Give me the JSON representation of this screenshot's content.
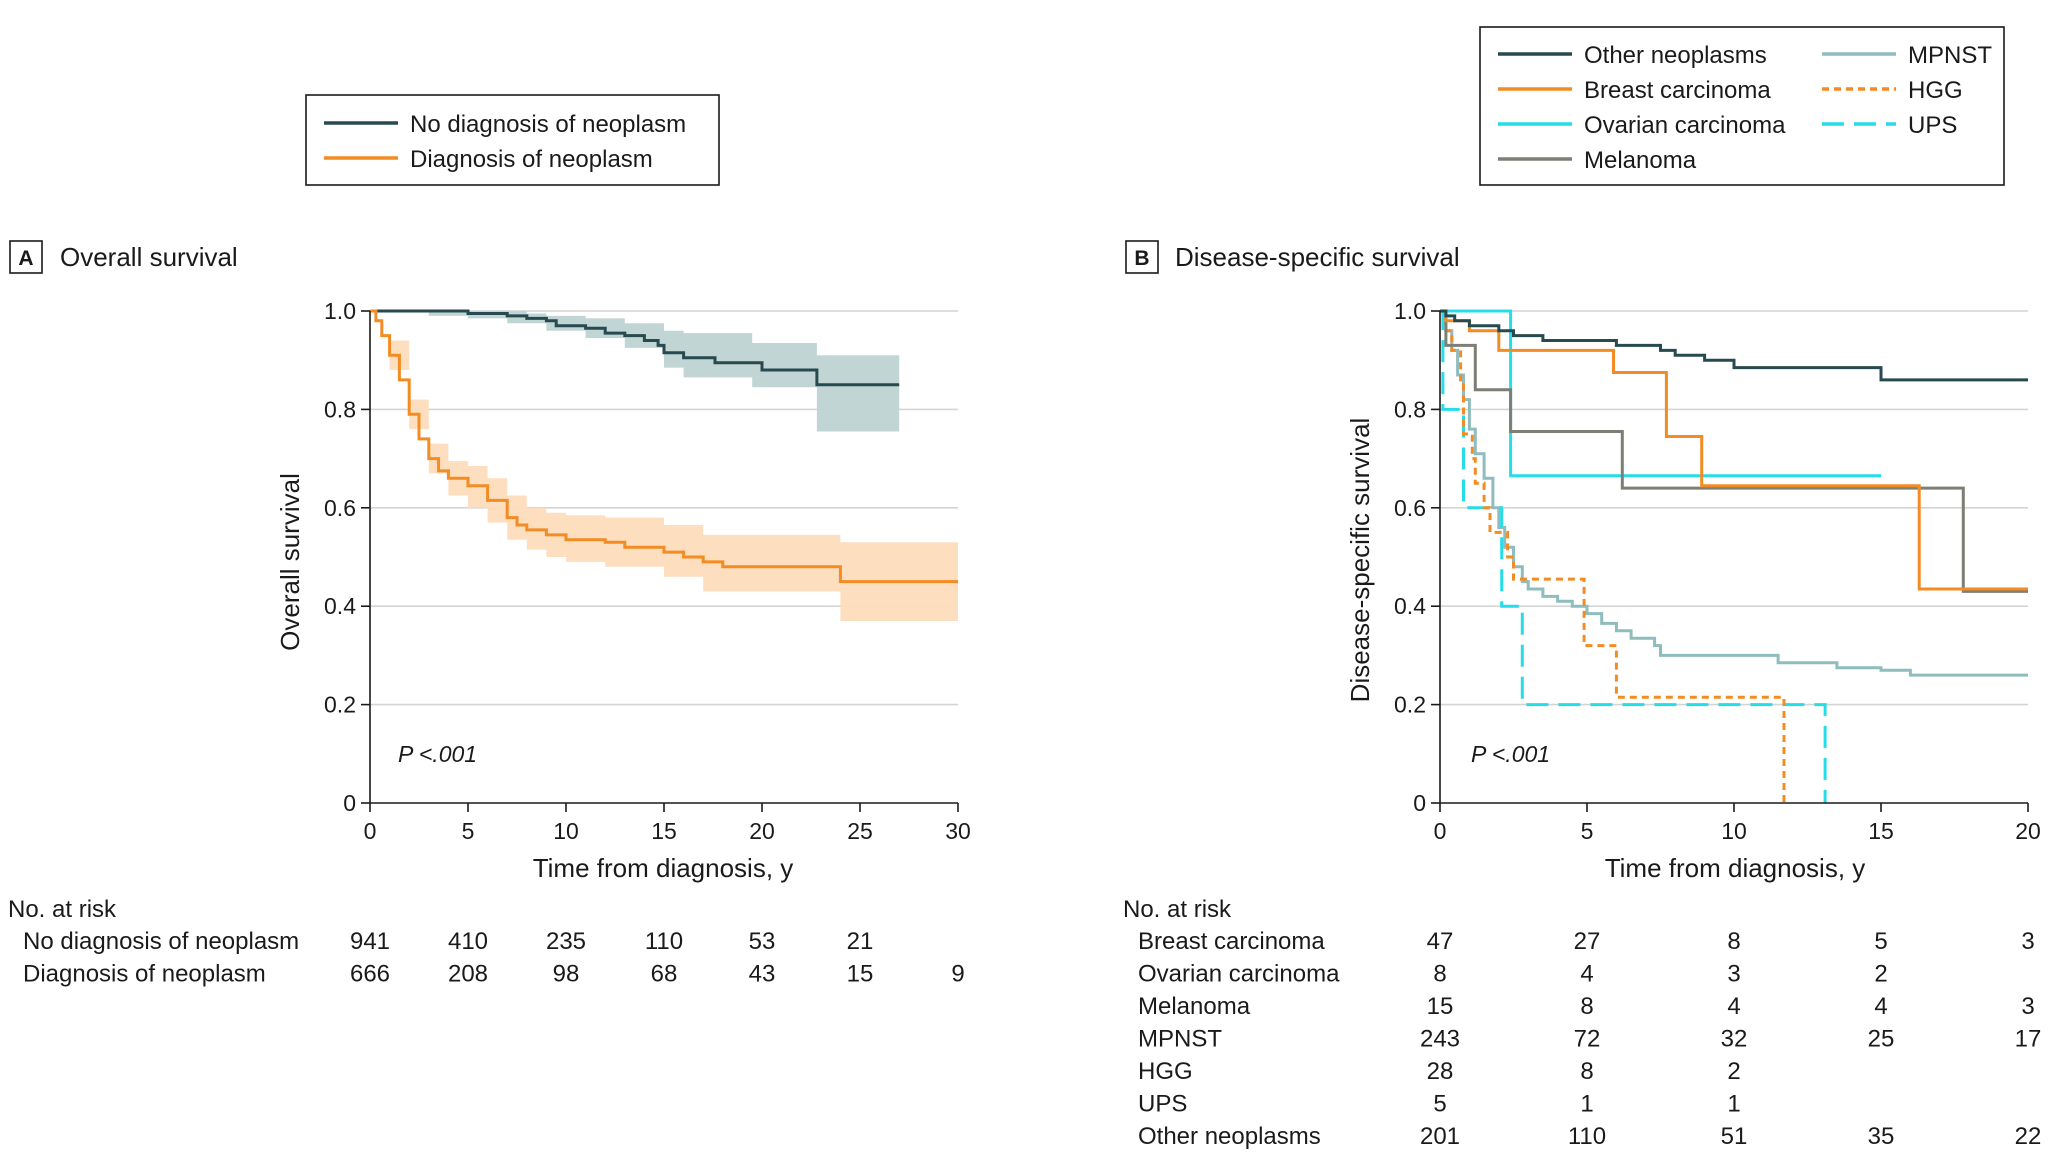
{
  "colors": {
    "no_neoplasm": "#264a4f",
    "neoplasm": "#f28c23",
    "other_neoplasms": "#264a4f",
    "breast": "#f28c23",
    "ovarian": "#27dce9",
    "melanoma": "#7d7f75",
    "mpnst": "#8fbcbd",
    "hgg": "#f28c23",
    "ups": "#27dce9",
    "ci_no_neoplasm": "#bfd3d3",
    "ci_neoplasm": "#fddcbc",
    "grid": "#d4d4d4"
  },
  "panel_a": {
    "letter": "A",
    "title": "Overall survival",
    "legend": [
      "No diagnosis of neoplasm",
      "Diagnosis of neoplasm"
    ],
    "pvalue": "P <.001",
    "risk": {
      "header": "No. at risk",
      "rows": [
        {
          "label": "No diagnosis of neoplasm",
          "values": [
            "941",
            "410",
            "235",
            "110",
            "53",
            "21",
            ""
          ]
        },
        {
          "label": "Diagnosis of neoplasm",
          "values": [
            "666",
            "208",
            "98",
            "68",
            "43",
            "15",
            "9"
          ]
        }
      ]
    }
  },
  "panel_b": {
    "letter": "B",
    "title": "Disease-specific survival",
    "legend": [
      "Other neoplasms",
      "Breast carcinoma",
      "Ovarian carcinoma",
      "Melanoma",
      "MPNST",
      "HGG",
      "UPS"
    ],
    "pvalue": "P <.001",
    "risk": {
      "header": "No. at risk",
      "rows": [
        {
          "label": "Breast carcinoma",
          "values": [
            "47",
            "27",
            "8",
            "5",
            "3"
          ]
        },
        {
          "label": "Ovarian carcinoma",
          "values": [
            "8",
            "4",
            "3",
            "2",
            ""
          ]
        },
        {
          "label": "Melanoma",
          "values": [
            "15",
            "8",
            "4",
            "4",
            "3"
          ]
        },
        {
          "label": "MPNST",
          "values": [
            "243",
            "72",
            "32",
            "25",
            "17"
          ]
        },
        {
          "label": "HGG",
          "values": [
            "28",
            "8",
            "2",
            "",
            ""
          ]
        },
        {
          "label": "UPS",
          "values": [
            "5",
            "1",
            "1",
            "",
            ""
          ]
        },
        {
          "label": "Other neoplasms",
          "values": [
            "201",
            "110",
            "51",
            "35",
            "22"
          ]
        }
      ]
    }
  },
  "chart_data": [
    {
      "type": "line",
      "subtype": "kaplan-meier step",
      "title": "Overall survival",
      "xlabel": "Time from diagnosis, y",
      "ylabel": "Overall survival",
      "xlim": [
        0,
        30
      ],
      "ylim": [
        0,
        1
      ],
      "xticks": [
        0,
        5,
        10,
        15,
        20,
        25,
        30
      ],
      "yticks": [
        0,
        0.2,
        0.4,
        0.6,
        0.8,
        1.0
      ],
      "ytick_labels": [
        "0",
        "0.2",
        "0.4",
        "0.6",
        "0.8",
        "1.0"
      ],
      "grid": "horizontal",
      "series": [
        {
          "name": "No diagnosis of neoplasm",
          "step": true,
          "points": [
            [
              0,
              1.0
            ],
            [
              2.5,
              1.0
            ],
            [
              5,
              0.995
            ],
            [
              7,
              0.99
            ],
            [
              8,
              0.985
            ],
            [
              9,
              0.98
            ],
            [
              9.5,
              0.97
            ],
            [
              11,
              0.965
            ],
            [
              12,
              0.955
            ],
            [
              13,
              0.95
            ],
            [
              14,
              0.94
            ],
            [
              14.7,
              0.93
            ],
            [
              15,
              0.915
            ],
            [
              16,
              0.905
            ],
            [
              17.6,
              0.895
            ],
            [
              20,
              0.88
            ],
            [
              22.8,
              0.85
            ],
            [
              27,
              0.85
            ]
          ],
          "ci_lower": [
            [
              0,
              1.0
            ],
            [
              3,
              0.99
            ],
            [
              5,
              0.985
            ],
            [
              7,
              0.975
            ],
            [
              9,
              0.96
            ],
            [
              11,
              0.945
            ],
            [
              13,
              0.925
            ],
            [
              15,
              0.885
            ],
            [
              16,
              0.865
            ],
            [
              19.5,
              0.845
            ],
            [
              22.8,
              0.755
            ],
            [
              27,
              0.755
            ]
          ],
          "ci_upper": [
            [
              0,
              1.0
            ],
            [
              5,
              1.0
            ],
            [
              8,
              0.995
            ],
            [
              9,
              0.99
            ],
            [
              11,
              0.985
            ],
            [
              13,
              0.975
            ],
            [
              15,
              0.96
            ],
            [
              16,
              0.955
            ],
            [
              19.5,
              0.935
            ],
            [
              22.8,
              0.91
            ],
            [
              27,
              0.91
            ]
          ]
        },
        {
          "name": "Diagnosis of neoplasm",
          "step": true,
          "points": [
            [
              0,
              1.0
            ],
            [
              0.3,
              0.98
            ],
            [
              0.6,
              0.95
            ],
            [
              1,
              0.91
            ],
            [
              1.5,
              0.86
            ],
            [
              2,
              0.79
            ],
            [
              2.5,
              0.74
            ],
            [
              3,
              0.7
            ],
            [
              3.5,
              0.675
            ],
            [
              4,
              0.66
            ],
            [
              5,
              0.645
            ],
            [
              6,
              0.615
            ],
            [
              7,
              0.58
            ],
            [
              7.5,
              0.565
            ],
            [
              8,
              0.555
            ],
            [
              9,
              0.545
            ],
            [
              10,
              0.535
            ],
            [
              12,
              0.53
            ],
            [
              13,
              0.52
            ],
            [
              15,
              0.51
            ],
            [
              16,
              0.5
            ],
            [
              17,
              0.49
            ],
            [
              18,
              0.48
            ],
            [
              20,
              0.48
            ],
            [
              24,
              0.45
            ],
            [
              30,
              0.45
            ]
          ],
          "ci_lower": [
            [
              0,
              1.0
            ],
            [
              1,
              0.88
            ],
            [
              2,
              0.76
            ],
            [
              3,
              0.67
            ],
            [
              4,
              0.625
            ],
            [
              5,
              0.6
            ],
            [
              6,
              0.57
            ],
            [
              7,
              0.535
            ],
            [
              8,
              0.515
            ],
            [
              9,
              0.5
            ],
            [
              10,
              0.49
            ],
            [
              12,
              0.48
            ],
            [
              15,
              0.46
            ],
            [
              17,
              0.43
            ],
            [
              20,
              0.43
            ],
            [
              24,
              0.37
            ],
            [
              30,
              0.37
            ]
          ],
          "ci_upper": [
            [
              0,
              1.0
            ],
            [
              1,
              0.94
            ],
            [
              2,
              0.82
            ],
            [
              3,
              0.73
            ],
            [
              4,
              0.695
            ],
            [
              5,
              0.685
            ],
            [
              6,
              0.66
            ],
            [
              7,
              0.625
            ],
            [
              8,
              0.6
            ],
            [
              9,
              0.59
            ],
            [
              10,
              0.585
            ],
            [
              12,
              0.58
            ],
            [
              15,
              0.565
            ],
            [
              17,
              0.545
            ],
            [
              20,
              0.545
            ],
            [
              24,
              0.53
            ],
            [
              30,
              0.53
            ]
          ]
        }
      ]
    },
    {
      "type": "line",
      "subtype": "kaplan-meier step",
      "title": "Disease-specific survival",
      "xlabel": "Time from diagnosis, y",
      "ylabel": "Disease-specific survival",
      "xlim": [
        0,
        20
      ],
      "ylim": [
        0,
        1
      ],
      "xticks": [
        0,
        5,
        10,
        15,
        20
      ],
      "yticks": [
        0,
        0.2,
        0.4,
        0.6,
        0.8,
        1.0
      ],
      "ytick_labels": [
        "0",
        "0.2",
        "0.4",
        "0.6",
        "0.8",
        "1.0"
      ],
      "grid": "horizontal",
      "series": [
        {
          "name": "Other neoplasms",
          "step": true,
          "points": [
            [
              0,
              1.0
            ],
            [
              0.2,
              0.99
            ],
            [
              0.5,
              0.98
            ],
            [
              1,
              0.97
            ],
            [
              2,
              0.96
            ],
            [
              2.5,
              0.95
            ],
            [
              3.5,
              0.94
            ],
            [
              6,
              0.93
            ],
            [
              7.5,
              0.92
            ],
            [
              8,
              0.91
            ],
            [
              9,
              0.9
            ],
            [
              10,
              0.885
            ],
            [
              14.7,
              0.885
            ],
            [
              15,
              0.86
            ],
            [
              20,
              0.86
            ]
          ]
        },
        {
          "name": "Breast carcinoma",
          "step": true,
          "points": [
            [
              0,
              1.0
            ],
            [
              0.2,
              0.98
            ],
            [
              1,
              0.96
            ],
            [
              2,
              0.92
            ],
            [
              5.8,
              0.92
            ],
            [
              5.9,
              0.875
            ],
            [
              7.6,
              0.875
            ],
            [
              7.7,
              0.745
            ],
            [
              8.8,
              0.745
            ],
            [
              8.9,
              0.645
            ],
            [
              16.2,
              0.645
            ],
            [
              16.3,
              0.435
            ],
            [
              20,
              0.435
            ]
          ]
        },
        {
          "name": "Ovarian carcinoma",
          "step": true,
          "points": [
            [
              0,
              1.0
            ],
            [
              2.3,
              1.0
            ],
            [
              2.4,
              0.665
            ],
            [
              15,
              0.665
            ]
          ]
        },
        {
          "name": "Melanoma",
          "step": true,
          "points": [
            [
              0,
              1.0
            ],
            [
              0.2,
              0.93
            ],
            [
              1.1,
              0.93
            ],
            [
              1.2,
              0.84
            ],
            [
              2.3,
              0.84
            ],
            [
              2.4,
              0.755
            ],
            [
              6.1,
              0.755
            ],
            [
              6.2,
              0.64
            ],
            [
              17.7,
              0.64
            ],
            [
              17.8,
              0.43
            ],
            [
              20,
              0.43
            ]
          ]
        },
        {
          "name": "MPNST",
          "step": true,
          "points": [
            [
              0,
              1.0
            ],
            [
              0.2,
              0.96
            ],
            [
              0.4,
              0.92
            ],
            [
              0.6,
              0.87
            ],
            [
              0.8,
              0.82
            ],
            [
              1,
              0.76
            ],
            [
              1.2,
              0.71
            ],
            [
              1.5,
              0.66
            ],
            [
              1.8,
              0.6
            ],
            [
              2,
              0.56
            ],
            [
              2.2,
              0.52
            ],
            [
              2.5,
              0.48
            ],
            [
              2.8,
              0.45
            ],
            [
              3,
              0.435
            ],
            [
              3.5,
              0.42
            ],
            [
              4,
              0.41
            ],
            [
              4.5,
              0.4
            ],
            [
              5,
              0.385
            ],
            [
              5.5,
              0.365
            ],
            [
              6,
              0.35
            ],
            [
              6.5,
              0.335
            ],
            [
              7.3,
              0.32
            ],
            [
              7.5,
              0.3
            ],
            [
              10,
              0.3
            ],
            [
              11.5,
              0.285
            ],
            [
              13.5,
              0.275
            ],
            [
              15,
              0.27
            ],
            [
              16,
              0.26
            ],
            [
              20,
              0.26
            ]
          ]
        },
        {
          "name": "HGG",
          "step": true,
          "points": [
            [
              0,
              1.0
            ],
            [
              0.2,
              0.96
            ],
            [
              0.4,
              0.92
            ],
            [
              0.7,
              0.85
            ],
            [
              0.8,
              0.75
            ],
            [
              1.1,
              0.7
            ],
            [
              1.2,
              0.65
            ],
            [
              1.5,
              0.6
            ],
            [
              1.7,
              0.55
            ],
            [
              2.3,
              0.5
            ],
            [
              2.5,
              0.455
            ],
            [
              4.8,
              0.455
            ],
            [
              4.9,
              0.32
            ],
            [
              5.9,
              0.32
            ],
            [
              6,
              0.215
            ],
            [
              11.6,
              0.215
            ],
            [
              11.7,
              0.0
            ]
          ]
        },
        {
          "name": "UPS",
          "step": true,
          "points": [
            [
              0,
              1.0
            ],
            [
              0.1,
              0.8
            ],
            [
              0.7,
              0.8
            ],
            [
              0.8,
              0.6
            ],
            [
              2,
              0.6
            ],
            [
              2.1,
              0.4
            ],
            [
              2.7,
              0.4
            ],
            [
              2.8,
              0.2
            ],
            [
              13,
              0.2
            ],
            [
              13.1,
              0.0
            ]
          ]
        }
      ]
    }
  ]
}
